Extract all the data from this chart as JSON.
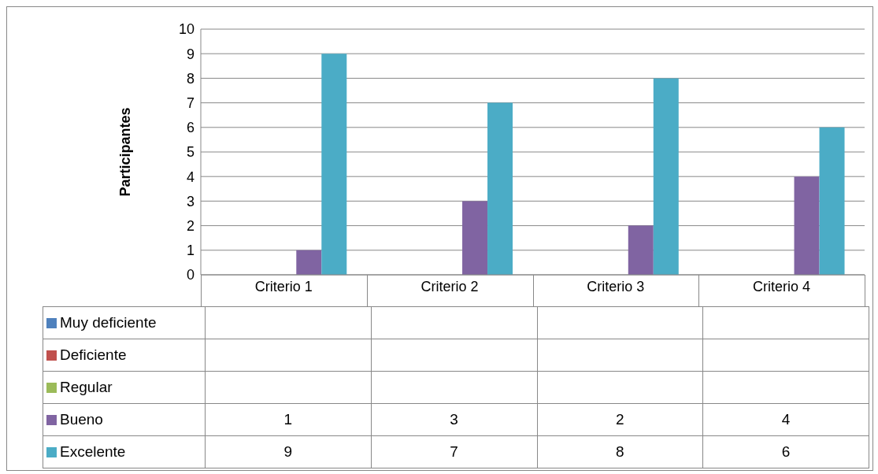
{
  "chart_data": {
    "type": "bar",
    "ylabel": "Participantes",
    "categories": [
      "Criterio 1",
      "Criterio 2",
      "Criterio 3",
      "Criterio 4"
    ],
    "series": [
      {
        "name": "Muy deficiente",
        "color": "#4f81bd",
        "values": [
          null,
          null,
          null,
          null
        ]
      },
      {
        "name": "Deficiente",
        "color": "#c0504d",
        "values": [
          null,
          null,
          null,
          null
        ]
      },
      {
        "name": "Regular",
        "color": "#9bbb59",
        "values": [
          null,
          null,
          null,
          null
        ]
      },
      {
        "name": "Bueno",
        "color": "#8064a2",
        "values": [
          1,
          3,
          2,
          4
        ]
      },
      {
        "name": "Excelente",
        "color": "#4bacc6",
        "values": [
          9,
          7,
          8,
          6
        ]
      }
    ],
    "ylim": [
      0,
      10
    ],
    "yticks": [
      0,
      1,
      2,
      3,
      4,
      5,
      6,
      7,
      8,
      9,
      10
    ],
    "grid": "y",
    "legend": "bottom left",
    "data_labels": true
  }
}
